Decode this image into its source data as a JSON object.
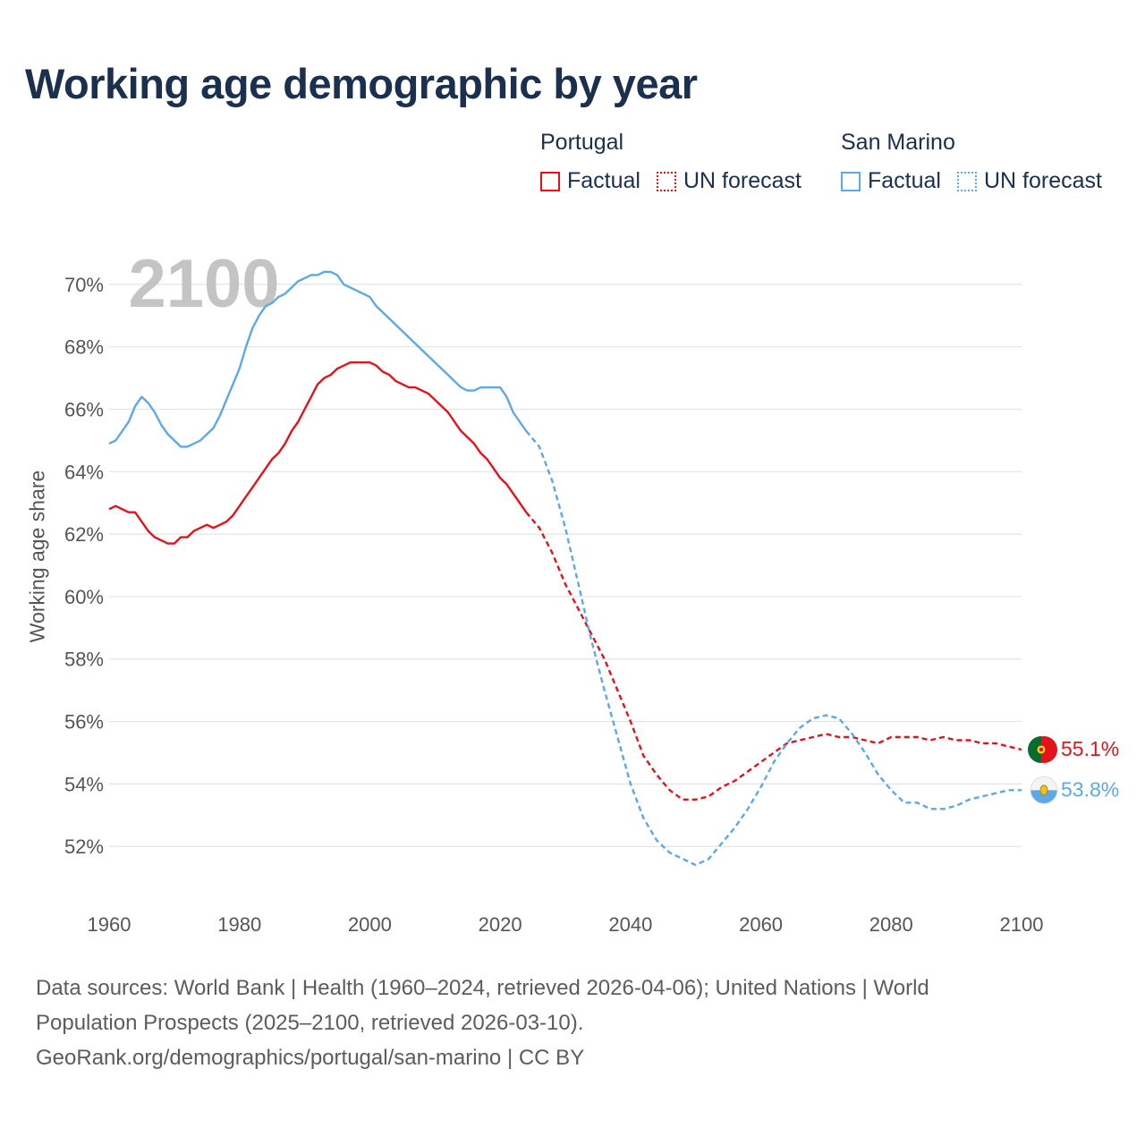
{
  "title": "Working age demographic by year",
  "year_overlay": "2100",
  "legend": {
    "groups": [
      {
        "name": "Portugal",
        "factual_label": "Factual",
        "forecast_label": "UN forecast",
        "color": "#e3121b"
      },
      {
        "name": "San Marino",
        "factual_label": "Factual",
        "forecast_label": "UN forecast",
        "color": "#5da8e8"
      }
    ]
  },
  "footer": {
    "line1": "Data sources: World Bank | Health (1960–2024, retrieved 2026-04-06); United Nations | World",
    "line2": "Population Prospects (2025–2100, retrieved 2026-03-10).",
    "line3": "GeoRank.org/demographics/portugal/san-marino | CC BY"
  },
  "chart_data": {
    "type": "line",
    "title": "Working age demographic by year",
    "xlabel": "",
    "ylabel": "Working age share",
    "xlim": [
      1960,
      2100
    ],
    "ylim": [
      50.4,
      71.0
    ],
    "x_ticks": [
      1960,
      1980,
      2000,
      2020,
      2040,
      2060,
      2080,
      2100
    ],
    "x_tick_labels": [
      "1960",
      "1980",
      "2000",
      "2020",
      "2040",
      "2060",
      "2080",
      "2100"
    ],
    "y_ticks": [
      52,
      54,
      56,
      58,
      60,
      62,
      64,
      66,
      68,
      70
    ],
    "y_tick_labels": [
      "52%",
      "54%",
      "56%",
      "58%",
      "60%",
      "62%",
      "64%",
      "66%",
      "68%",
      "70%"
    ],
    "grid": true,
    "series": [
      {
        "name": "Portugal",
        "color": "#e3121b",
        "end_label": "55.1%",
        "factual": {
          "x": [
            1960,
            1961,
            1962,
            1963,
            1964,
            1965,
            1966,
            1967,
            1968,
            1969,
            1970,
            1971,
            1972,
            1973,
            1974,
            1975,
            1976,
            1977,
            1978,
            1979,
            1980,
            1981,
            1982,
            1983,
            1984,
            1985,
            1986,
            1987,
            1988,
            1989,
            1990,
            1991,
            1992,
            1993,
            1994,
            1995,
            1996,
            1997,
            1998,
            1999,
            2000,
            2001,
            2002,
            2003,
            2004,
            2005,
            2006,
            2007,
            2008,
            2009,
            2010,
            2011,
            2012,
            2013,
            2014,
            2015,
            2016,
            2017,
            2018,
            2019,
            2020,
            2021,
            2022,
            2023,
            2024
          ],
          "y": [
            62.8,
            62.9,
            62.8,
            62.7,
            62.7,
            62.4,
            62.1,
            61.9,
            61.8,
            61.7,
            61.7,
            61.9,
            61.9,
            62.1,
            62.2,
            62.3,
            62.2,
            62.3,
            62.4,
            62.6,
            62.9,
            63.2,
            63.5,
            63.8,
            64.1,
            64.4,
            64.6,
            64.9,
            65.3,
            65.6,
            66.0,
            66.4,
            66.8,
            67.0,
            67.1,
            67.3,
            67.4,
            67.5,
            67.5,
            67.5,
            67.5,
            67.4,
            67.2,
            67.1,
            66.9,
            66.8,
            66.7,
            66.7,
            66.6,
            66.5,
            66.3,
            66.1,
            65.9,
            65.6,
            65.3,
            65.1,
            64.9,
            64.6,
            64.4,
            64.1,
            63.8,
            63.6,
            63.3,
            63.0,
            62.7
          ]
        },
        "forecast": {
          "x": [
            2024,
            2026,
            2028,
            2030,
            2032,
            2034,
            2036,
            2038,
            2040,
            2042,
            2044,
            2046,
            2048,
            2050,
            2052,
            2054,
            2056,
            2058,
            2060,
            2062,
            2064,
            2066,
            2068,
            2070,
            2072,
            2074,
            2076,
            2078,
            2080,
            2082,
            2084,
            2086,
            2088,
            2090,
            2092,
            2094,
            2096,
            2098,
            2100
          ],
          "y": [
            62.7,
            62.2,
            61.4,
            60.4,
            59.6,
            58.8,
            58.0,
            57.0,
            56.0,
            54.9,
            54.3,
            53.8,
            53.5,
            53.5,
            53.6,
            53.9,
            54.1,
            54.4,
            54.7,
            55.0,
            55.3,
            55.4,
            55.5,
            55.6,
            55.5,
            55.5,
            55.4,
            55.3,
            55.5,
            55.5,
            55.5,
            55.4,
            55.5,
            55.4,
            55.4,
            55.3,
            55.3,
            55.2,
            55.1
          ]
        }
      },
      {
        "name": "San Marino",
        "color": "#5da8e8",
        "end_label": "53.8%",
        "factual": {
          "x": [
            1960,
            1961,
            1962,
            1963,
            1964,
            1965,
            1966,
            1967,
            1968,
            1969,
            1970,
            1971,
            1972,
            1973,
            1974,
            1975,
            1976,
            1977,
            1978,
            1979,
            1980,
            1981,
            1982,
            1983,
            1984,
            1985,
            1986,
            1987,
            1988,
            1989,
            1990,
            1991,
            1992,
            1993,
            1994,
            1995,
            1996,
            1997,
            1998,
            1999,
            2000,
            2001,
            2002,
            2003,
            2004,
            2005,
            2006,
            2007,
            2008,
            2009,
            2010,
            2011,
            2012,
            2013,
            2014,
            2015,
            2016,
            2017,
            2018,
            2019,
            2020,
            2021,
            2022,
            2023,
            2024
          ],
          "y": [
            64.9,
            65.0,
            65.3,
            65.6,
            66.1,
            66.4,
            66.2,
            65.9,
            65.5,
            65.2,
            65.0,
            64.8,
            64.8,
            64.9,
            65.0,
            65.2,
            65.4,
            65.8,
            66.3,
            66.8,
            67.3,
            68.0,
            68.6,
            69.0,
            69.3,
            69.4,
            69.6,
            69.7,
            69.9,
            70.1,
            70.2,
            70.3,
            70.3,
            70.4,
            70.4,
            70.3,
            70.0,
            69.9,
            69.8,
            69.7,
            69.6,
            69.3,
            69.1,
            68.9,
            68.7,
            68.5,
            68.3,
            68.1,
            67.9,
            67.7,
            67.5,
            67.3,
            67.1,
            66.9,
            66.7,
            66.6,
            66.6,
            66.7,
            66.7,
            66.7,
            66.7,
            66.4,
            65.9,
            65.6,
            65.3
          ]
        },
        "forecast": {
          "x": [
            2024,
            2026,
            2028,
            2030,
            2032,
            2034,
            2036,
            2038,
            2040,
            2042,
            2044,
            2046,
            2048,
            2050,
            2052,
            2054,
            2056,
            2058,
            2060,
            2062,
            2064,
            2066,
            2068,
            2070,
            2072,
            2074,
            2076,
            2078,
            2080,
            2082,
            2084,
            2086,
            2088,
            2090,
            2092,
            2094,
            2096,
            2098,
            2100
          ],
          "y": [
            65.3,
            64.8,
            63.7,
            62.2,
            60.4,
            58.6,
            57.0,
            55.5,
            54.0,
            52.9,
            52.2,
            51.8,
            51.6,
            51.4,
            51.6,
            52.1,
            52.6,
            53.2,
            53.9,
            54.7,
            55.3,
            55.8,
            56.1,
            56.2,
            56.1,
            55.6,
            55.0,
            54.3,
            53.8,
            53.4,
            53.4,
            53.2,
            53.2,
            53.3,
            53.5,
            53.6,
            53.7,
            53.8,
            53.8
          ]
        }
      }
    ]
  }
}
